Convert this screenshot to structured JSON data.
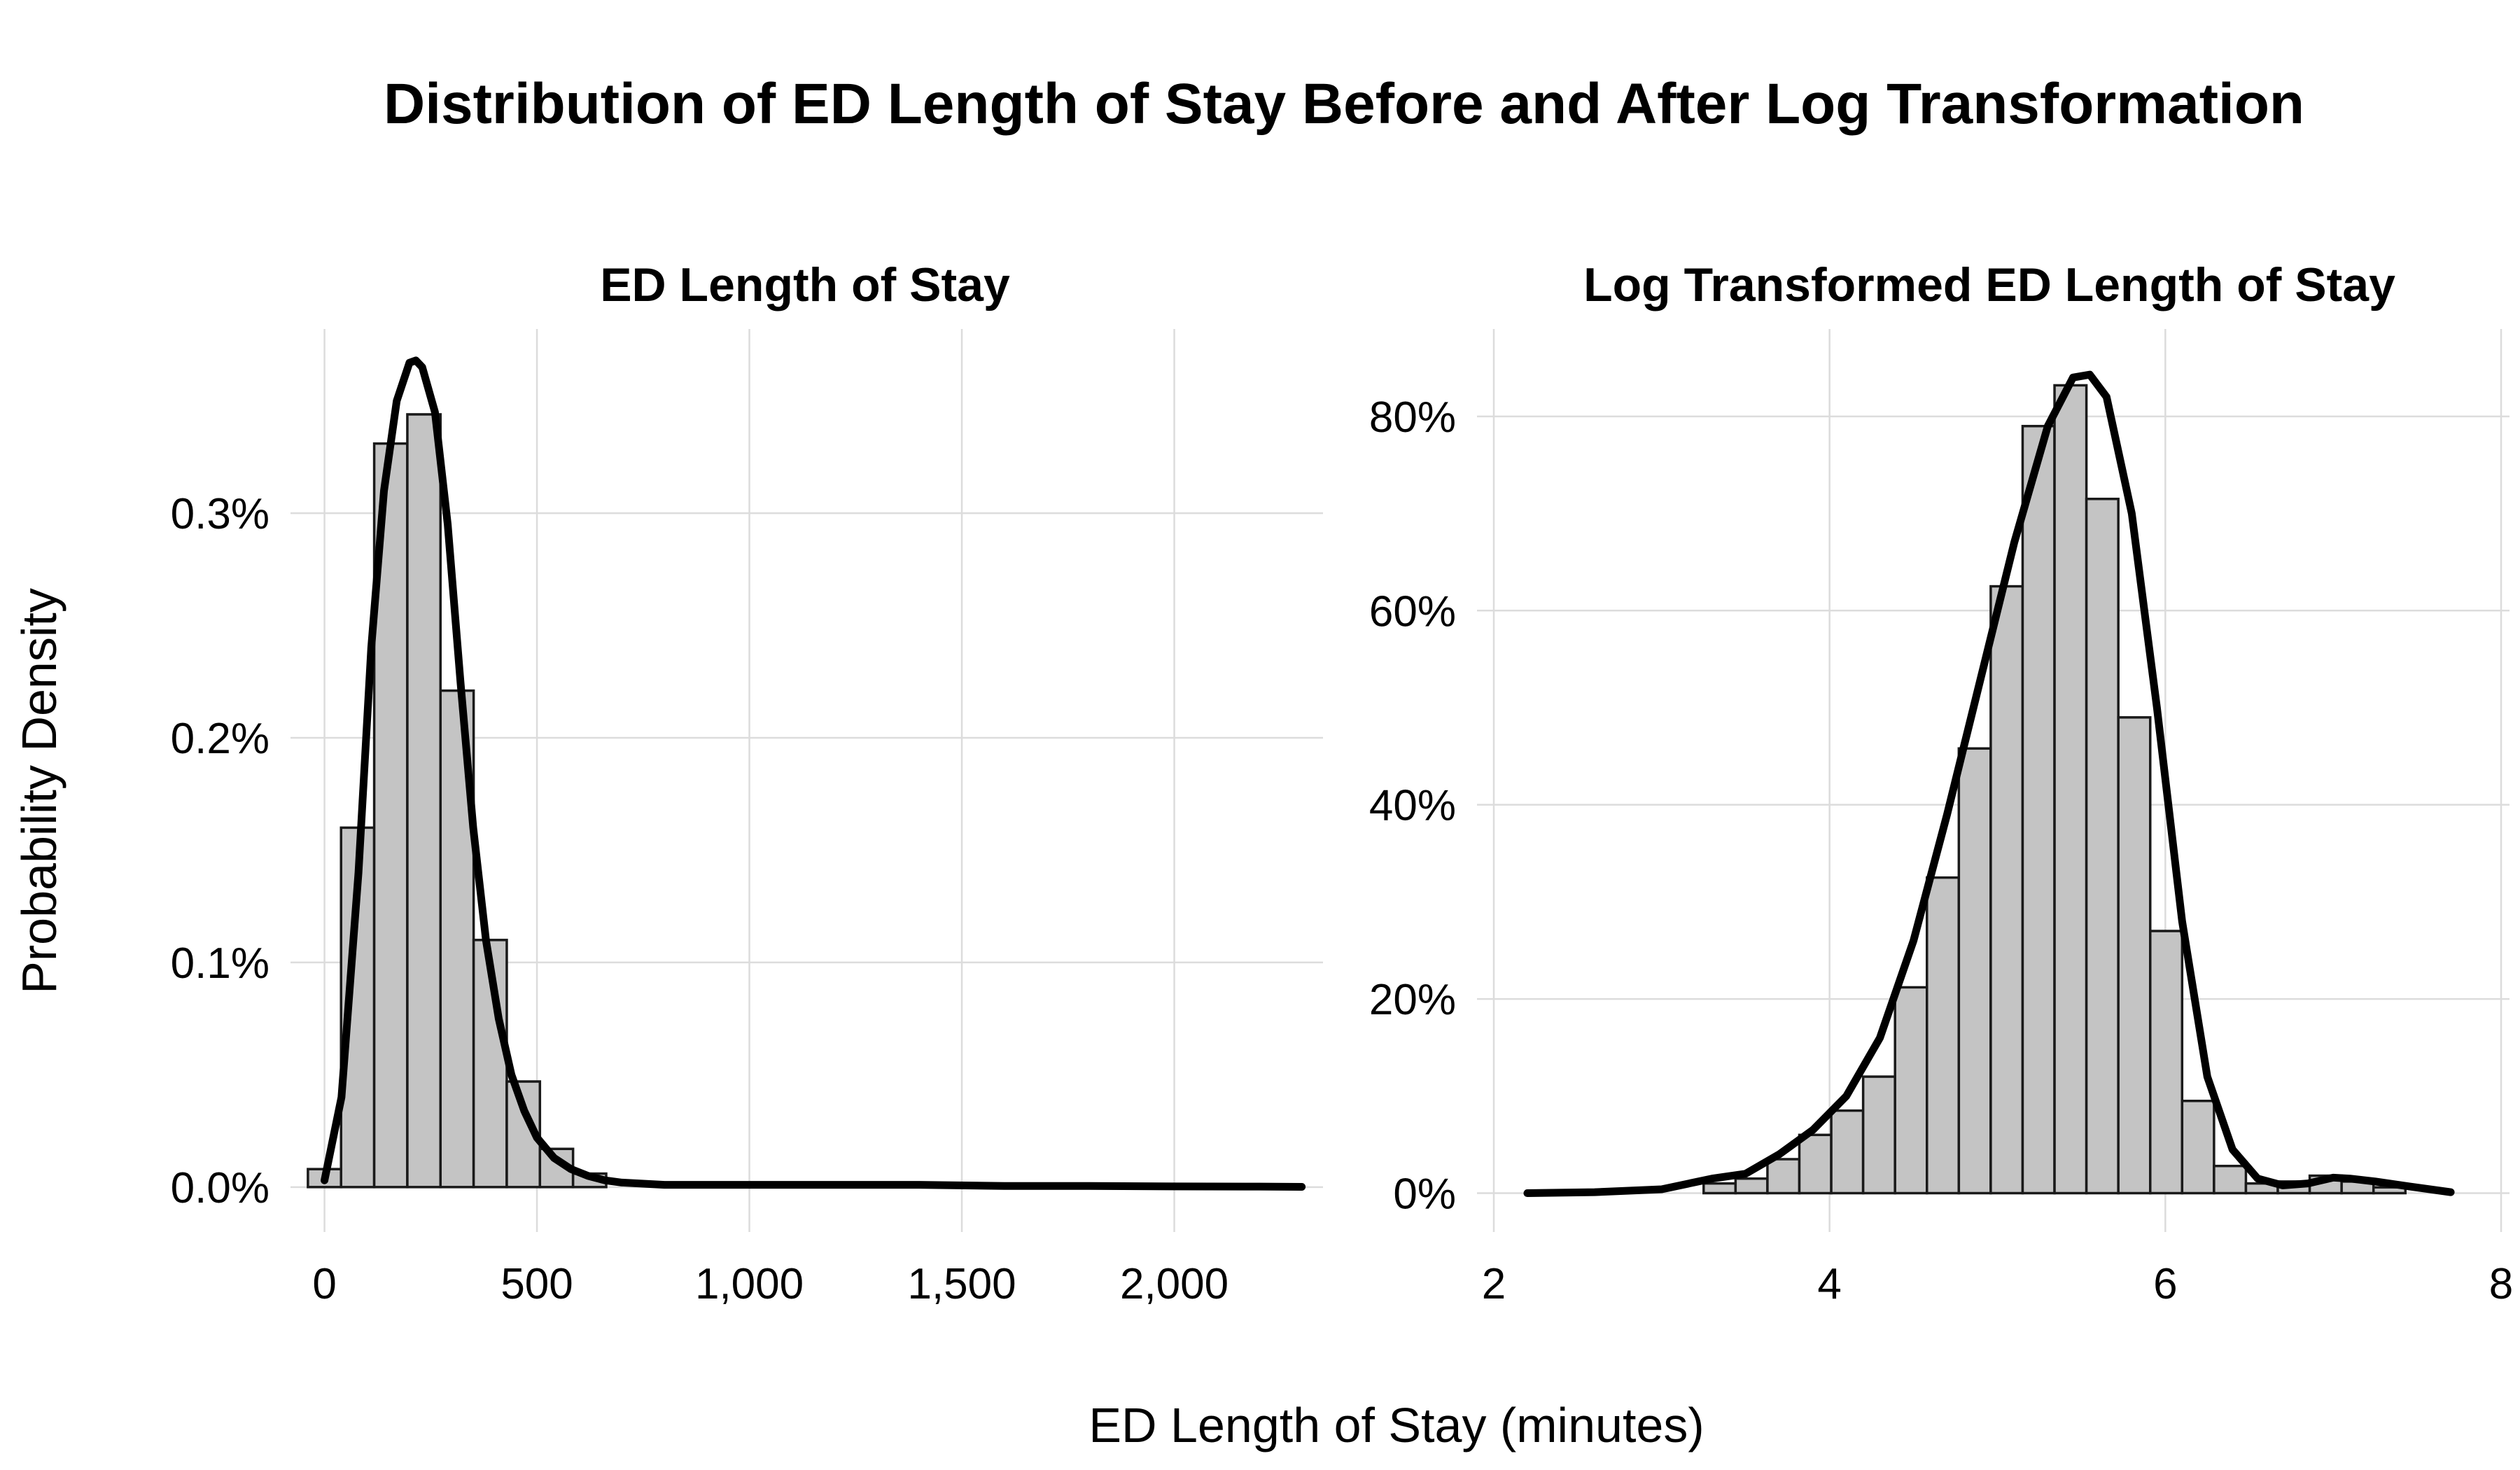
{
  "title": "Distribution of ED Length of Stay Before and After Log Transformation",
  "ylabel": "Probability Density",
  "xlabel": "ED Length of Stay (minutes)",
  "colors": {
    "bar_fill": "#c4c4c4",
    "bar_stroke": "#1a1a1a",
    "curve": "#000000",
    "grid": "#dcdcdc",
    "background": "#ffffff"
  },
  "chart_data": [
    {
      "type": "bar",
      "title": "ED Length of Stay",
      "xlim": [
        -80,
        2350
      ],
      "ylim": [
        -0.0002,
        0.00382
      ],
      "x_ticks": [
        0,
        500,
        1000,
        1500,
        2000
      ],
      "x_tick_labels": [
        "0",
        "500",
        "1,000",
        "1,500",
        "2,000"
      ],
      "y_ticks": [
        0,
        0.001,
        0.002,
        0.003
      ],
      "y_tick_labels": [
        "0.0%",
        "0.1%",
        "0.2%",
        "0.3%"
      ],
      "bin_width": 78,
      "bin_starts": [
        -39,
        39,
        117,
        195,
        273,
        351,
        429,
        507,
        585
      ],
      "bin_values": [
        8e-05,
        0.0016,
        0.00331,
        0.00344,
        0.00221,
        0.0011,
        0.00047,
        0.00017,
        6e-05
      ],
      "density_curve": {
        "x": [
          0,
          40,
          80,
          110,
          140,
          170,
          200,
          215,
          230,
          260,
          290,
          320,
          350,
          380,
          410,
          440,
          470,
          500,
          540,
          580,
          620,
          660,
          700,
          800,
          1000,
          1200,
          1400,
          1600,
          1800,
          2000,
          2200,
          2300
        ],
        "y": [
          3e-05,
          0.0004,
          0.0014,
          0.0024,
          0.0031,
          0.0035,
          0.00367,
          0.00368,
          0.00365,
          0.00345,
          0.00295,
          0.00225,
          0.0016,
          0.0011,
          0.00075,
          0.0005,
          0.00034,
          0.00022,
          0.00013,
          8e-05,
          5e-05,
          3e-05,
          2e-05,
          1e-05,
          1e-05,
          1e-05,
          1e-05,
          5e-06,
          5e-06,
          3e-06,
          2e-06,
          1e-06
        ]
      },
      "grid": true
    },
    {
      "type": "bar",
      "title": "Log Transformed ED Length of Stay",
      "xlim": [
        1.9,
        8.05
      ],
      "ylim": [
        -0.04,
        0.89
      ],
      "x_ticks": [
        2,
        4,
        6,
        8
      ],
      "x_tick_labels": [
        "2",
        "4",
        "6",
        "8"
      ],
      "y_ticks": [
        0,
        0.2,
        0.4,
        0.6,
        0.8
      ],
      "y_tick_labels": [
        "0%",
        "20%",
        "40%",
        "60%",
        "80%"
      ],
      "bin_width": 0.19,
      "bin_starts": [
        3.25,
        3.44,
        3.63,
        3.82,
        4.01,
        4.2,
        4.39,
        4.58,
        4.77,
        4.96,
        5.15,
        5.34,
        5.53,
        5.72,
        5.91,
        6.1,
        6.29,
        6.48,
        6.67,
        6.86,
        7.05,
        7.24
      ],
      "bin_values": [
        0.01,
        0.015,
        0.035,
        0.06,
        0.085,
        0.12,
        0.212,
        0.325,
        0.458,
        0.625,
        0.79,
        0.832,
        0.715,
        0.49,
        0.27,
        0.095,
        0.028,
        0.01,
        0.012,
        0.018,
        0.012,
        0.006
      ],
      "density_curve": {
        "x": [
          2.2,
          2.6,
          3.0,
          3.3,
          3.5,
          3.7,
          3.9,
          4.1,
          4.3,
          4.5,
          4.7,
          4.9,
          5.1,
          5.3,
          5.45,
          5.55,
          5.65,
          5.8,
          5.95,
          6.1,
          6.25,
          6.4,
          6.55,
          6.7,
          6.85,
          7.0,
          7.1,
          7.25,
          7.45,
          7.7
        ],
        "y": [
          0.0,
          0.001,
          0.004,
          0.015,
          0.02,
          0.04,
          0.065,
          0.1,
          0.16,
          0.26,
          0.39,
          0.53,
          0.67,
          0.79,
          0.84,
          0.843,
          0.82,
          0.7,
          0.5,
          0.28,
          0.12,
          0.045,
          0.015,
          0.008,
          0.01,
          0.016,
          0.015,
          0.012,
          0.007,
          0.001
        ]
      },
      "grid": true
    }
  ]
}
